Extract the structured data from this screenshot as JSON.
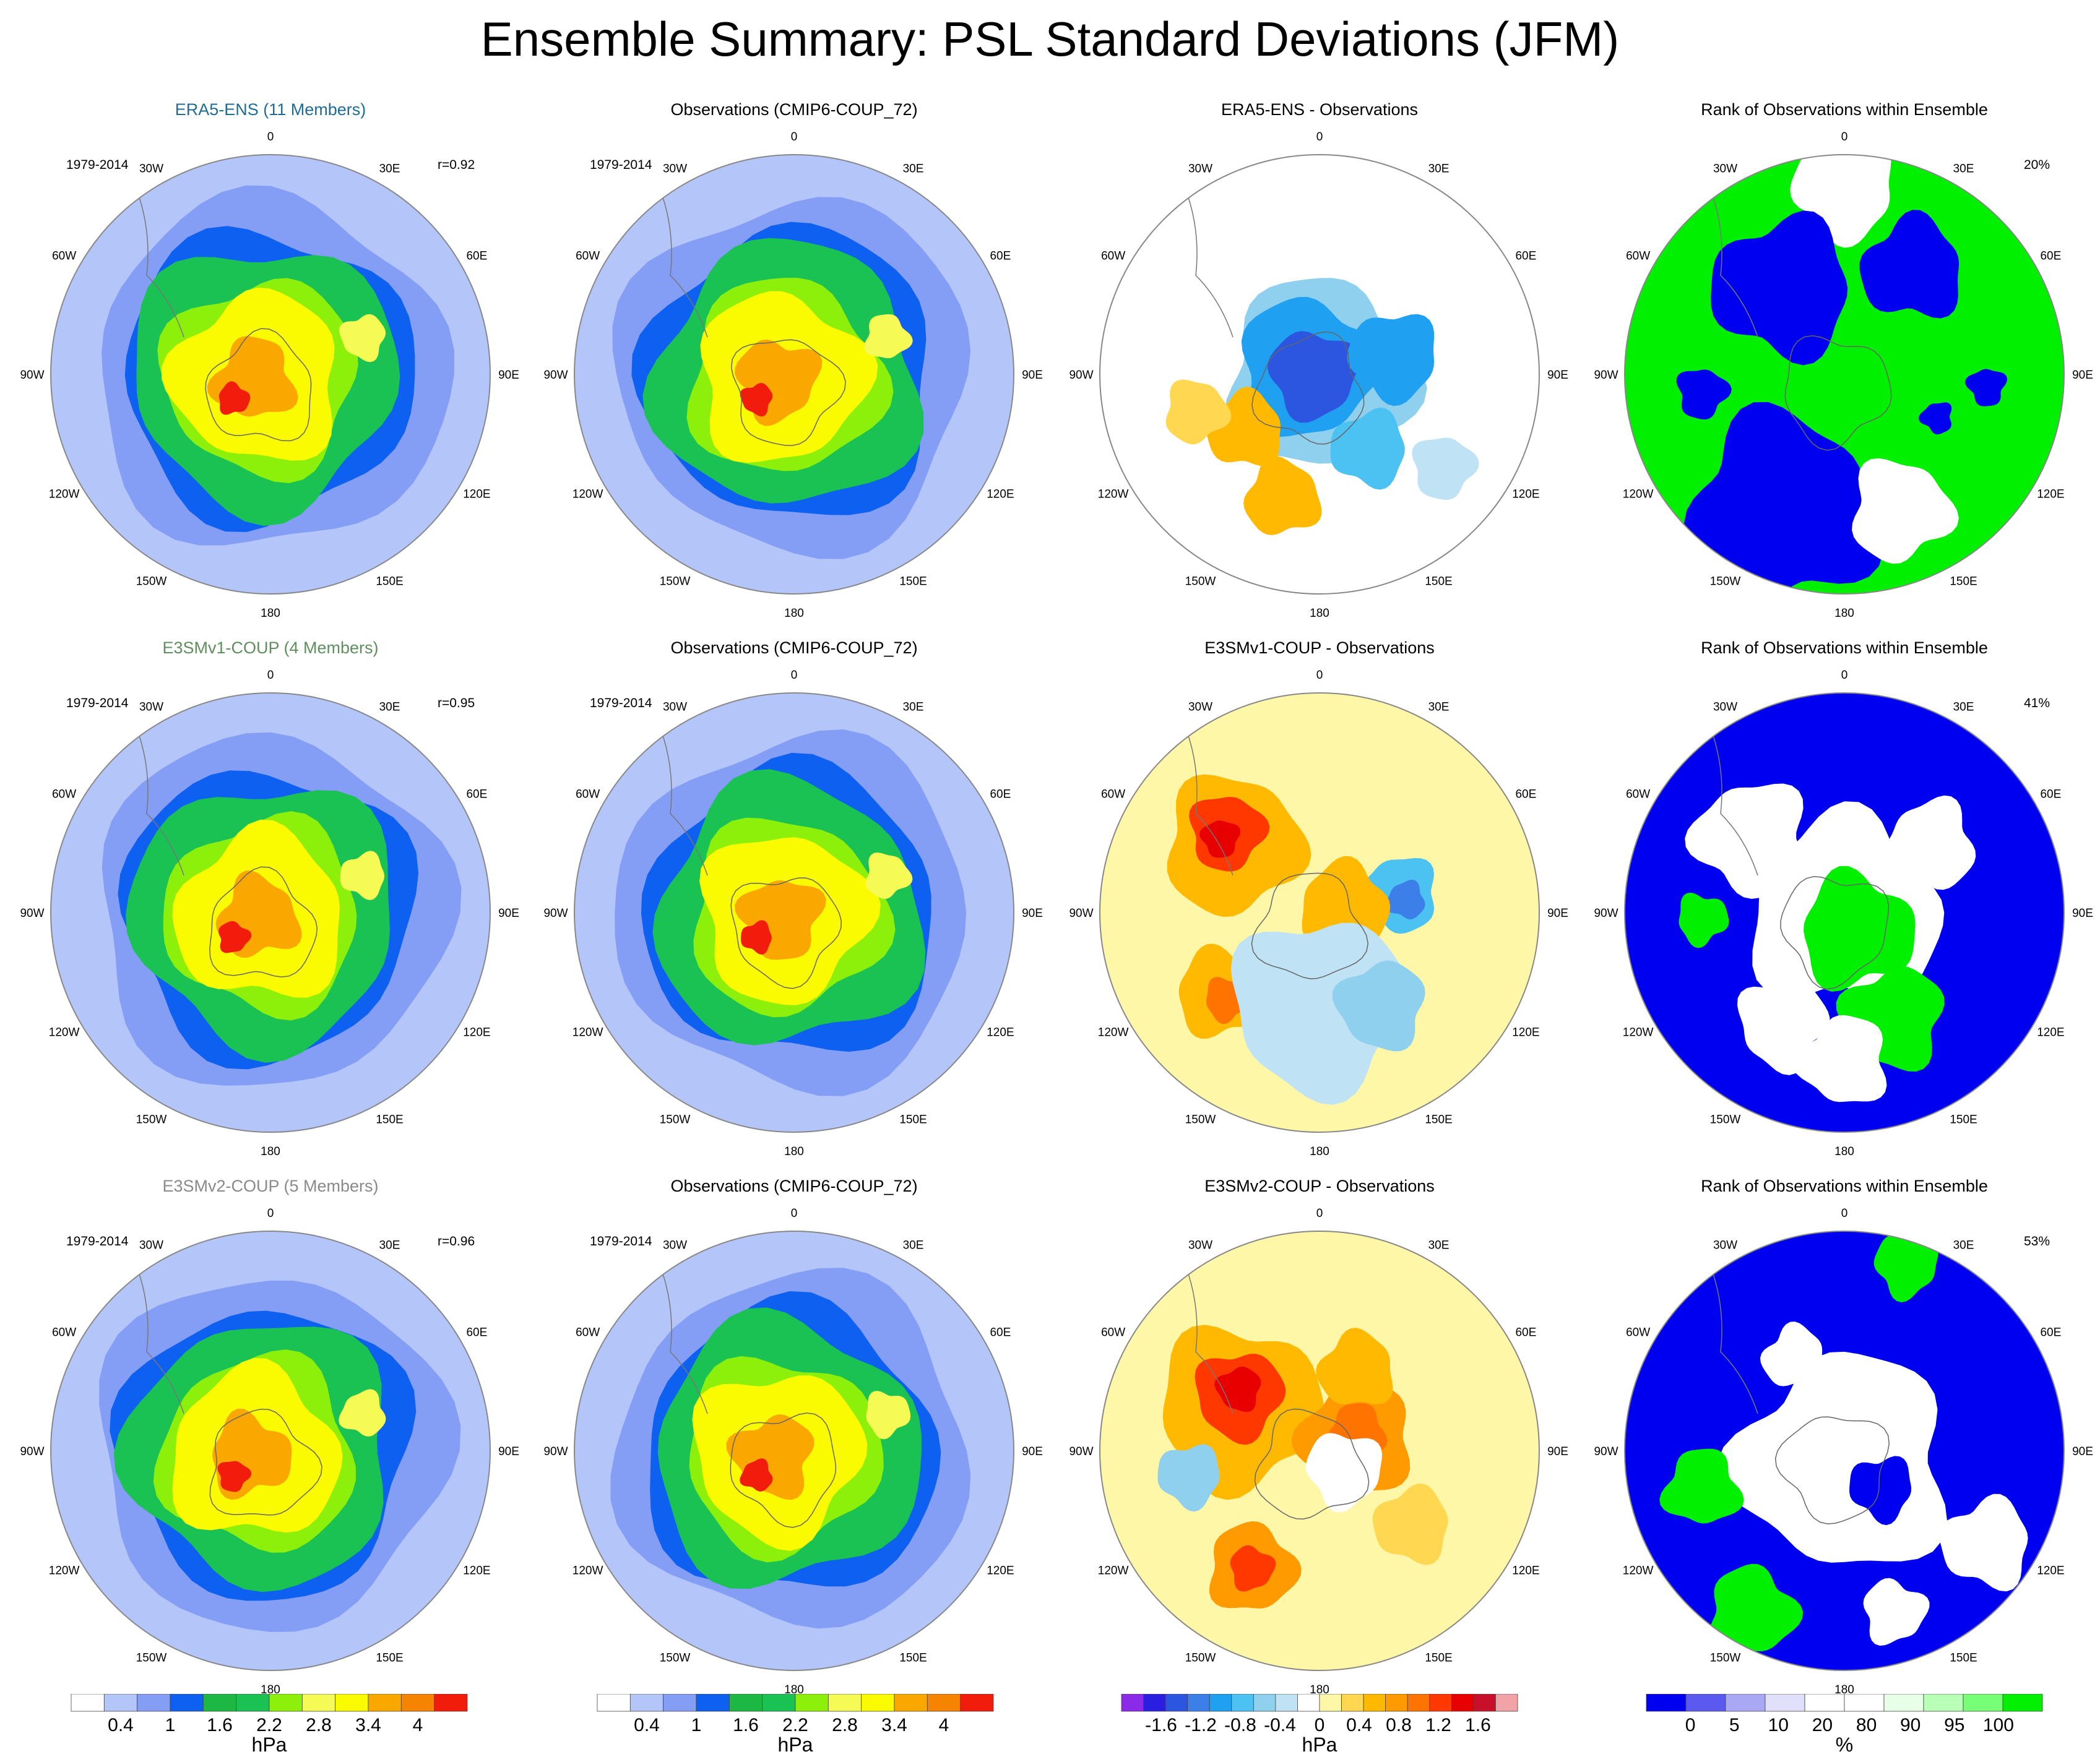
{
  "title": "Ensemble Summary: PSL Standard Deviations (JFM)",
  "longitude_labels": [
    "0",
    "30E",
    "60E",
    "90E",
    "120E",
    "150E",
    "180",
    "150W",
    "120W",
    "90W",
    "60W",
    "30W"
  ],
  "colors": {
    "model_title_row1": "#1f6c94",
    "model_title_row2": "#5f8f5f",
    "model_title_row3": "#8a8a8a",
    "ocean_light": "#b4c6f9",
    "land_mask": "#c8d6fb",
    "sd_levels": [
      "#ffffff",
      "#b4c6f9",
      "#849df5",
      "#0d60f0",
      "#1cb843",
      "#19c253",
      "#8df00b",
      "#f6fa55",
      "#fafa00",
      "#faa800",
      "#f78400",
      "#f21c0c"
    ],
    "diff_levels": [
      "#8b2ae8",
      "#2a1ee0",
      "#2c55e0",
      "#3c7fe8",
      "#1fa0f0",
      "#4cc2f2",
      "#8ed0ee",
      "#bfe3f5",
      "#ffffff",
      "#fff7a8",
      "#ffd750",
      "#ffb900",
      "#ff9a00",
      "#ff7300",
      "#ff3800",
      "#e80000",
      "#c8102a",
      "#f2a3a8"
    ],
    "rank_levels": [
      "#0000f0",
      "#5a5af0",
      "#a8a8f5",
      "#e0e0fa",
      "#ffffff",
      "#ffffff",
      "#e8ffe8",
      "#b8ffb8",
      "#78ff78",
      "#00f000"
    ]
  },
  "rows": [
    {
      "model_title": "ERA5-ENS (11 Members)",
      "period": "1979-2014",
      "correlation": "r=0.92",
      "obs_title": "Observations (CMIP6-COUP_72)",
      "obs_period": "1979-2014",
      "diff_title": "ERA5-ENS - Observations",
      "rank_title": "Rank of Observations within Ensemble",
      "rank_percent": "20%"
    },
    {
      "model_title": "E3SMv1-COUP (4 Members)",
      "period": "1979-2014",
      "correlation": "r=0.95",
      "obs_title": "Observations (CMIP6-COUP_72)",
      "obs_period": "1979-2014",
      "diff_title": "E3SMv1-COUP - Observations",
      "rank_title": "Rank of Observations within Ensemble",
      "rank_percent": "41%"
    },
    {
      "model_title": "E3SMv2-COUP (5 Members)",
      "period": "1979-2014",
      "correlation": "r=0.96",
      "obs_title": "Observations (CMIP6-COUP_72)",
      "obs_period": "1979-2014",
      "diff_title": "E3SMv2-COUP - Observations",
      "rank_title": "Rank of Observations within Ensemble",
      "rank_percent": "53%"
    }
  ],
  "colorbars": [
    {
      "unit": "hPa",
      "ticks": [
        "0.4",
        "1",
        "1.6",
        "2.2",
        "2.8",
        "3.4",
        "4"
      ]
    },
    {
      "unit": "hPa",
      "ticks": [
        "0.4",
        "1",
        "1.6",
        "2.2",
        "2.8",
        "3.4",
        "4"
      ]
    },
    {
      "unit": "hPa",
      "ticks": [
        "-1.6",
        "-1.2",
        "-0.8",
        "-0.4",
        "0",
        "0.4",
        "0.8",
        "1.2",
        "1.6"
      ]
    },
    {
      "unit": "%",
      "ticks": [
        "0",
        "5",
        "10",
        "20",
        "80",
        "90",
        "95",
        "100"
      ]
    }
  ]
}
